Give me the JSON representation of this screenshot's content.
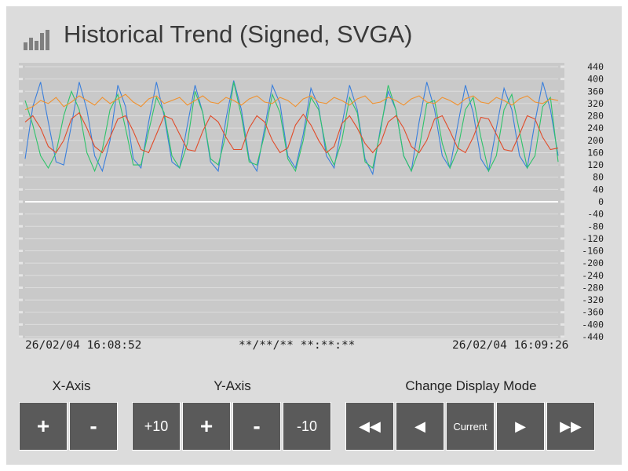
{
  "title": "Historical Trend (Signed, SVGA)",
  "icons": {
    "title": "bar-chart-icon"
  },
  "chart_data": {
    "type": "line",
    "ylim": [
      -440,
      440
    ],
    "yticks": [
      440,
      400,
      360,
      320,
      280,
      240,
      200,
      160,
      120,
      80,
      40,
      0,
      -40,
      -80,
      -120,
      -160,
      -200,
      -240,
      -280,
      -320,
      -360,
      -400,
      -440
    ],
    "grid": true,
    "x_start": "26/02/04 16:08:52",
    "x_cursor": "**/**/** **:**:**",
    "x_end": "26/02/04 16:09:26",
    "colors": {
      "blue": "#3a7fdc",
      "green": "#2fc36a",
      "red": "#e14c2a",
      "orange": "#f0912e"
    },
    "series": [
      {
        "color": "blue",
        "values": [
          140,
          310,
          390,
          260,
          130,
          120,
          250,
          390,
          300,
          150,
          100,
          200,
          380,
          310,
          140,
          110,
          260,
          390,
          280,
          130,
          110,
          250,
          380,
          290,
          130,
          100,
          270,
          395,
          300,
          140,
          100,
          240,
          380,
          320,
          150,
          110,
          220,
          370,
          310,
          150,
          110,
          250,
          380,
          300,
          140,
          90,
          240,
          360,
          300,
          150,
          100,
          260,
          390,
          300,
          150,
          110,
          250,
          380,
          290,
          140,
          100,
          240,
          370,
          300,
          150,
          110,
          260,
          390,
          300,
          150
        ]
      },
      {
        "color": "green",
        "values": [
          330,
          250,
          150,
          110,
          160,
          280,
          360,
          300,
          160,
          100,
          170,
          300,
          350,
          240,
          120,
          120,
          230,
          340,
          290,
          150,
          110,
          190,
          360,
          290,
          140,
          120,
          220,
          390,
          280,
          130,
          120,
          220,
          350,
          290,
          140,
          100,
          200,
          340,
          300,
          170,
          120,
          200,
          340,
          290,
          130,
          110,
          230,
          380,
          300,
          150,
          100,
          170,
          320,
          330,
          190,
          110,
          170,
          300,
          340,
          210,
          100,
          150,
          300,
          350,
          230,
          110,
          150,
          310,
          340,
          130
        ]
      },
      {
        "color": "red",
        "values": [
          260,
          280,
          240,
          180,
          160,
          200,
          270,
          290,
          240,
          180,
          160,
          210,
          270,
          280,
          230,
          170,
          160,
          220,
          280,
          270,
          220,
          170,
          165,
          230,
          280,
          260,
          210,
          170,
          170,
          240,
          280,
          260,
          200,
          160,
          175,
          250,
          285,
          250,
          200,
          160,
          180,
          255,
          280,
          240,
          190,
          160,
          190,
          260,
          280,
          240,
          180,
          160,
          200,
          270,
          280,
          230,
          175,
          160,
          210,
          275,
          270,
          220,
          170,
          165,
          220,
          280,
          270,
          210,
          170,
          175
        ]
      },
      {
        "color": "orange",
        "values": [
          300,
          310,
          330,
          320,
          340,
          310,
          325,
          345,
          330,
          315,
          340,
          320,
          335,
          350,
          325,
          310,
          335,
          345,
          320,
          330,
          340,
          315,
          330,
          345,
          325,
          320,
          340,
          330,
          315,
          335,
          345,
          325,
          320,
          340,
          330,
          310,
          335,
          345,
          325,
          320,
          340,
          330,
          315,
          335,
          345,
          320,
          325,
          340,
          330,
          315,
          335,
          345,
          325,
          320,
          340,
          330,
          315,
          335,
          345,
          325,
          320,
          340,
          330,
          315,
          335,
          345,
          325,
          320,
          335,
          330
        ]
      }
    ]
  },
  "x_axis_label": "X-Axis",
  "y_axis_label": "Y-Axis",
  "mode_label": "Change Display Mode",
  "buttons": {
    "x_plus": "+",
    "x_minus": "-",
    "y_plus10": "+10",
    "y_plus": "+",
    "y_minus": "-",
    "y_minus10": "-10",
    "fast_back": "◀◀",
    "back": "◀",
    "current": "Current",
    "forward": "▶",
    "fast_forward": "▶▶"
  }
}
